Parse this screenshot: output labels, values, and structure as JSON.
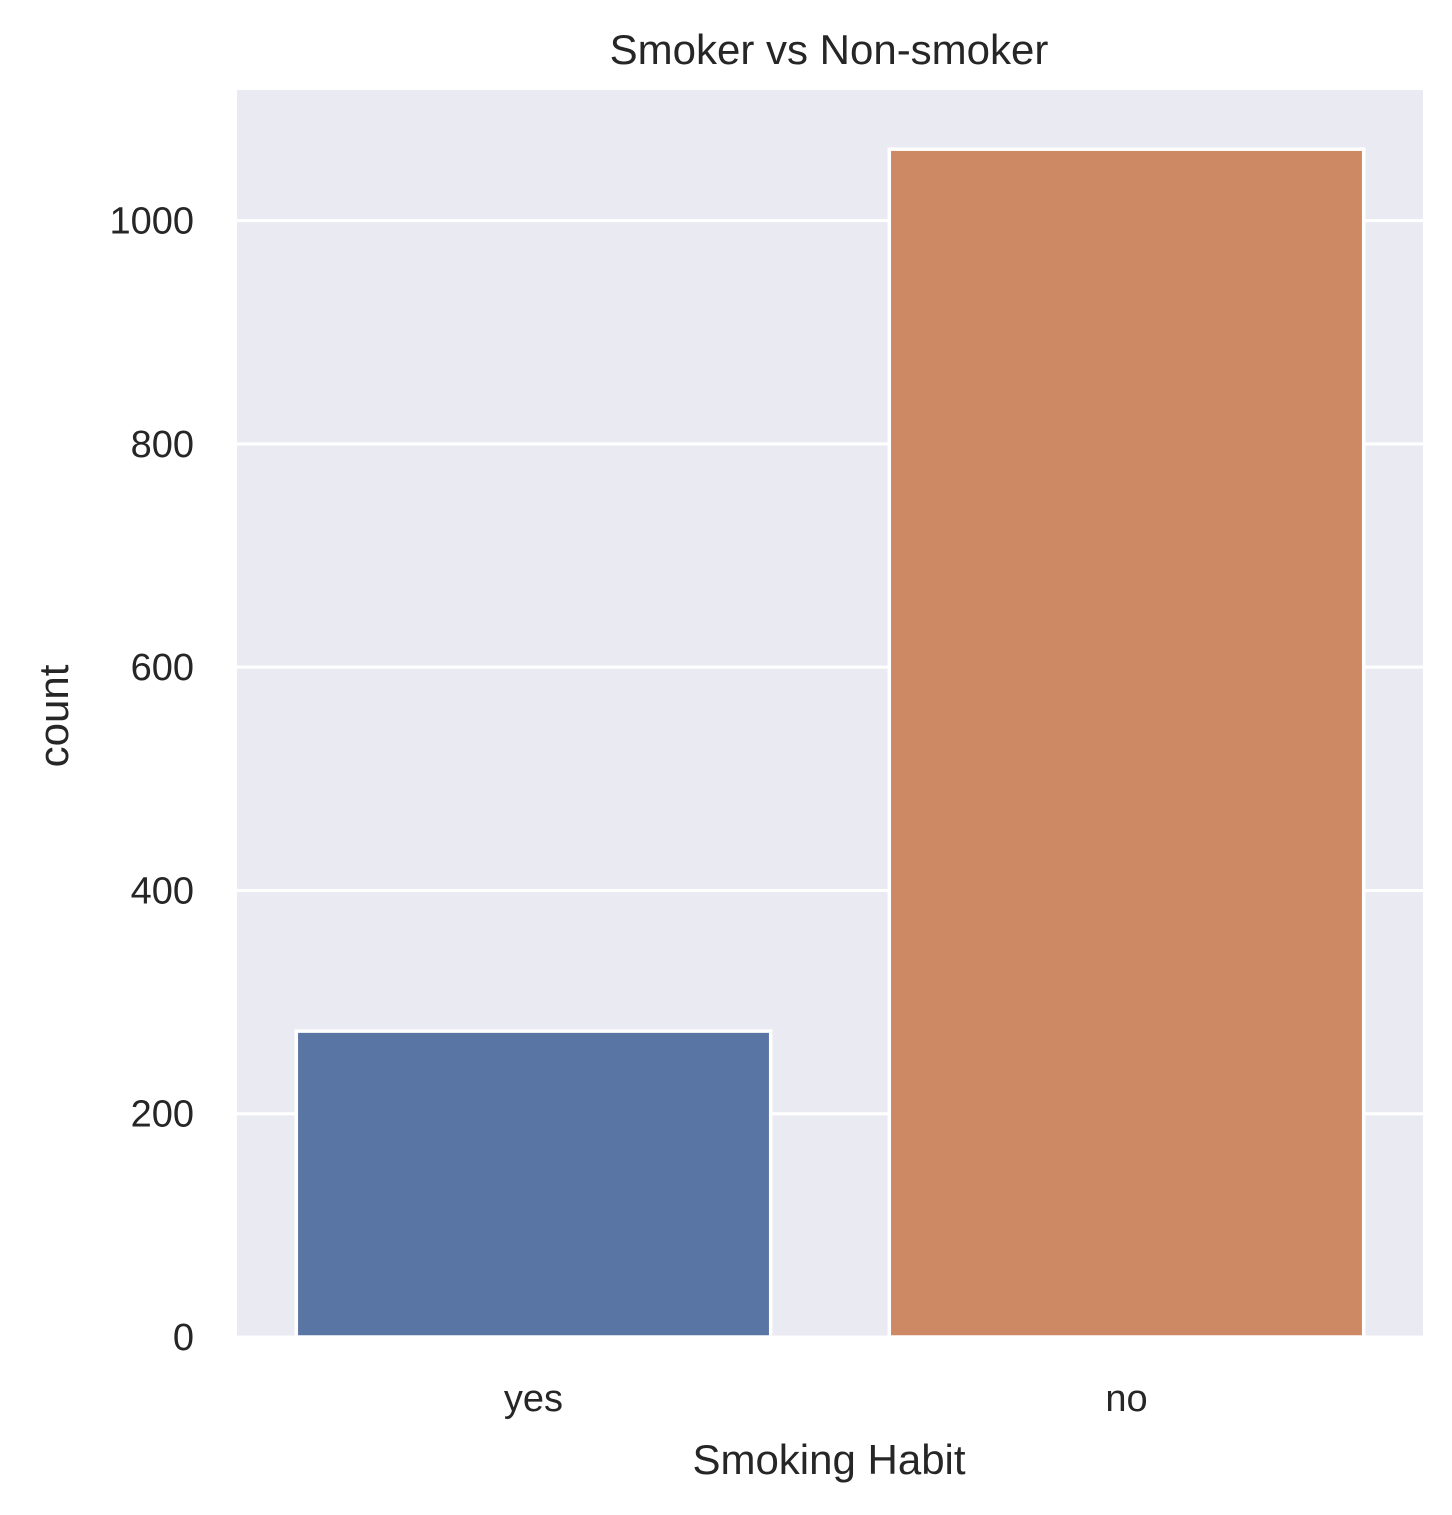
{
  "chart_data": {
    "type": "bar",
    "title": "Smoker vs Non-smoker",
    "xlabel": "Smoking Habit",
    "ylabel": "count",
    "categories": [
      "yes",
      "no"
    ],
    "values": [
      274,
      1064
    ],
    "colors": [
      "#5975a4",
      "#cc8963"
    ],
    "ylim": [
      0,
      1117
    ],
    "yticks": [
      0,
      200,
      400,
      600,
      800,
      1000
    ],
    "grid": true,
    "background": "#eaeaf2"
  }
}
